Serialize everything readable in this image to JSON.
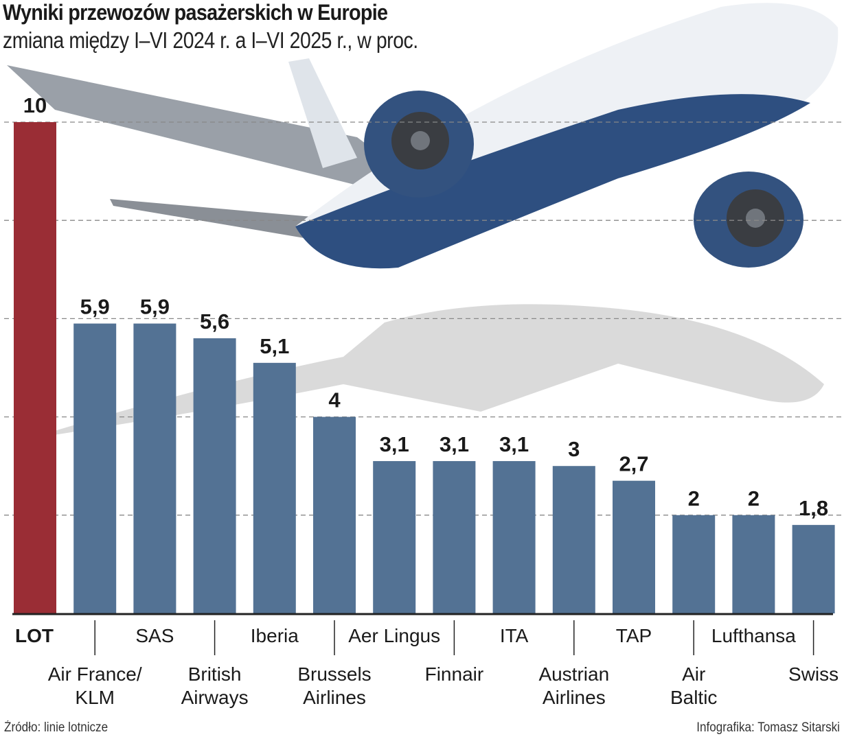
{
  "header": {
    "title": "Wyniki przewozów pasażerskich w Europie",
    "subtitle": "zmiana między I–VI 2024 r. a I–VI 2025 r., w proc."
  },
  "footer": {
    "source": "Źródło: linie lotnicze",
    "credit": "Infografika: Tomasz Sitarski"
  },
  "colors": {
    "highlight": "#9a2d35",
    "bar": "#537294",
    "grid": "#888888",
    "axis": "#222222",
    "plane_shadow": "#d4d4d4",
    "plane_body": "#2e4f80",
    "plane_top": "#eef1f5"
  },
  "chart_data": {
    "type": "bar",
    "title": "Wyniki przewozów pasażerskich w Europie",
    "subtitle": "zmiana między I–VI 2024 r. a I–VI 2025 r., w proc.",
    "xlabel": "",
    "ylabel": "",
    "ylim": [
      0,
      10
    ],
    "gridlines": [
      2,
      4,
      6,
      8,
      10
    ],
    "grid": true,
    "grid_style": "dashed",
    "legend": "none",
    "categories": [
      "LOT",
      "Air France/KLM",
      "SAS",
      "British Airways",
      "Iberia",
      "Brussels Airlines",
      "Aer Lingus",
      "Finnair",
      "ITA",
      "Austrian Airlines",
      "TAP",
      "Air Baltic",
      "Lufthansa",
      "Swiss"
    ],
    "category_lines": [
      [
        "LOT"
      ],
      [
        "Air France/",
        "KLM"
      ],
      [
        "SAS"
      ],
      [
        "British",
        "Airways"
      ],
      [
        "Iberia"
      ],
      [
        "Brussels",
        "Airlines"
      ],
      [
        "Aer Lingus"
      ],
      [
        "Finnair"
      ],
      [
        "ITA"
      ],
      [
        "Austrian",
        "Airlines"
      ],
      [
        "TAP"
      ],
      [
        "Air",
        "Baltic"
      ],
      [
        "Lufthansa"
      ],
      [
        "Swiss"
      ]
    ],
    "values": [
      10,
      5.9,
      5.9,
      5.6,
      5.1,
      4,
      3.1,
      3.1,
      3.1,
      3,
      2.7,
      2,
      2,
      1.8
    ],
    "value_labels": [
      "10",
      "5,9",
      "5,9",
      "5,6",
      "5,1",
      "4",
      "3,1",
      "3,1",
      "3,1",
      "3",
      "2,7",
      "2",
      "2",
      "1,8"
    ],
    "highlighted": [
      "LOT"
    ]
  }
}
